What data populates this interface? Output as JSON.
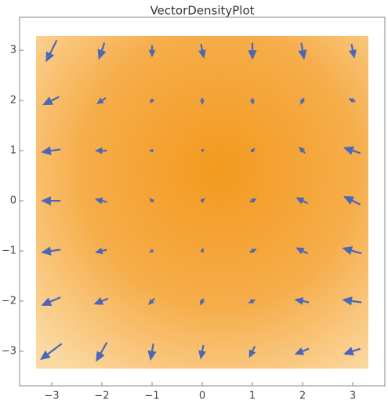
{
  "chart_data": {
    "type": "vector_density",
    "title": "VectorDensityPlot",
    "xlim": [
      -3.64,
      3.64
    ],
    "ylim": [
      -3.69,
      3.66
    ],
    "xticks": [
      {
        "value": -3,
        "label": "−3"
      },
      {
        "value": -2,
        "label": "−2"
      },
      {
        "value": -1,
        "label": "−1"
      },
      0,
      1,
      2,
      3
    ],
    "yticks": [
      {
        "value": -3,
        "label": "−3"
      },
      {
        "value": -2,
        "label": "−2"
      },
      {
        "value": -1,
        "label": "−1"
      },
      0,
      1,
      2,
      3
    ],
    "color": "#4a67b8",
    "x": [
      -3,
      -2,
      -1,
      0,
      1,
      2,
      3
    ],
    "y": [
      3,
      2,
      1,
      0,
      -1,
      -2,
      -3
    ],
    "u": [
      [
        -0.2,
        -0.1,
        0,
        0.05,
        0,
        0.05,
        0.05
      ],
      [
        -0.3,
        -0.15,
        -0.05,
        0,
        0.02,
        -0.05,
        -0.1
      ],
      [
        -0.35,
        -0.2,
        -0.05,
        0.02,
        0.05,
        -0.1,
        -0.3
      ],
      [
        -0.35,
        -0.2,
        -0.05,
        0.05,
        0.1,
        -0.2,
        -0.3
      ],
      [
        -0.35,
        -0.2,
        -0.05,
        0.02,
        0.1,
        -0.2,
        -0.35
      ],
      [
        -0.35,
        -0.25,
        -0.1,
        -0.05,
        -0.1,
        -0.25,
        -0.35
      ],
      [
        -0.4,
        -0.2,
        -0.05,
        -0.05,
        -0.1,
        -0.25,
        -0.3
      ]
    ],
    "v": [
      [
        -0.4,
        -0.3,
        -0.2,
        -0.25,
        -0.3,
        -0.3,
        -0.25
      ],
      [
        -0.15,
        -0.1,
        -0.05,
        -0.1,
        -0.1,
        -0.1,
        0.05
      ],
      [
        -0.05,
        0,
        0,
        0.02,
        0.05,
        0.1,
        0.1
      ],
      [
        0,
        0.05,
        0.05,
        0.05,
        0.05,
        0.1,
        0.15
      ],
      [
        -0.05,
        -0.05,
        -0.02,
        0.05,
        0.05,
        0.1,
        0.1
      ],
      [
        -0.15,
        -0.1,
        -0.1,
        -0.1,
        -0.05,
        0.05,
        0.05
      ],
      [
        -0.3,
        -0.35,
        -0.3,
        -0.25,
        -0.2,
        -0.1,
        -0.1
      ]
    ]
  }
}
